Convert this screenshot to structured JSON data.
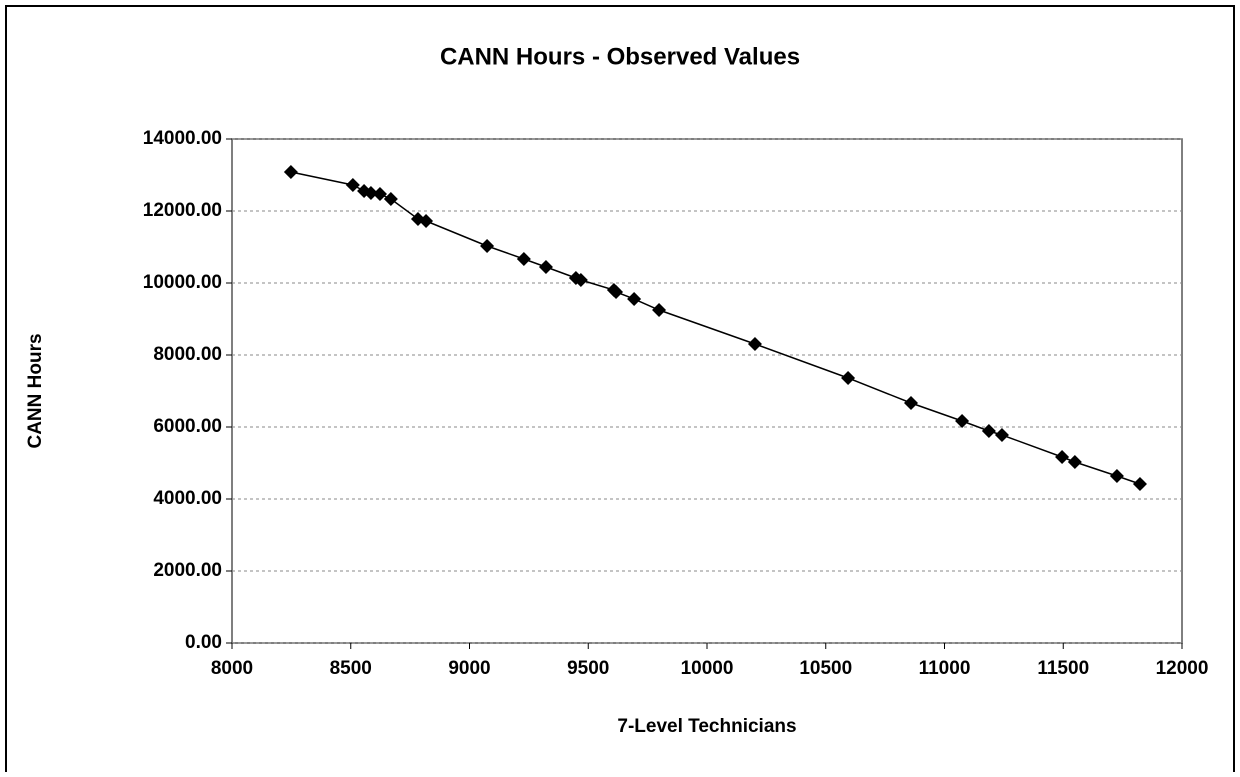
{
  "chart_data": {
    "type": "scatter",
    "title": "CANN Hours - Observed Values",
    "x_label": "7-Level Technicians",
    "y_label": "CANN Hours",
    "x": [
      8248,
      8509,
      8556,
      8585,
      8623,
      8669,
      8783,
      8817,
      9074,
      9229,
      9322,
      9448,
      9469,
      9608,
      9617,
      9693,
      9798,
      10202,
      10594,
      10859,
      11074,
      11187,
      11242,
      11495,
      11549,
      11726,
      11823
    ],
    "values": [
      13083,
      12722,
      12556,
      12500,
      12472,
      12333,
      11778,
      11722,
      11028,
      10667,
      10444,
      10139,
      10083,
      9806,
      9750,
      9556,
      9250,
      8306,
      7361,
      6667,
      6167,
      5889,
      5778,
      5167,
      5028,
      4639,
      4417
    ],
    "color": "#000000",
    "line": true,
    "xlim": [
      8000,
      12000
    ],
    "xticks": [
      8000,
      8500,
      9000,
      9500,
      10000,
      10500,
      11000,
      11500,
      12000
    ],
    "ylim": [
      0,
      14000
    ],
    "yticks": [
      {
        "value": 0,
        "label": "0.00"
      },
      {
        "value": 2000,
        "label": "2000.00"
      },
      {
        "value": 4000,
        "label": "4000.00"
      },
      {
        "value": 6000,
        "label": "6000.00"
      },
      {
        "value": 8000,
        "label": "8000.00"
      },
      {
        "value": 10000,
        "label": "10000.00"
      },
      {
        "value": 12000,
        "label": "12000.00"
      },
      {
        "value": 14000,
        "label": "14000.00"
      }
    ],
    "grid": true
  }
}
